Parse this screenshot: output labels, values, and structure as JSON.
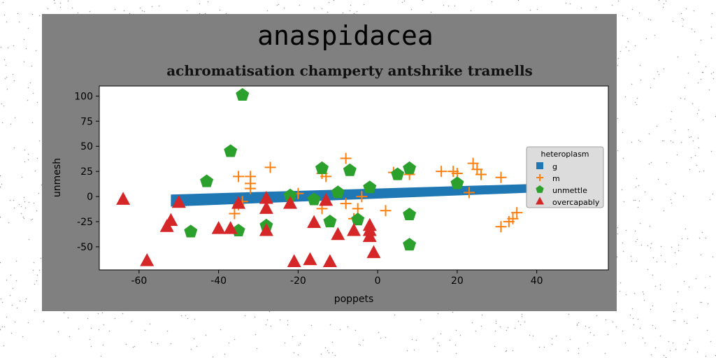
{
  "chart_data": {
    "type": "scatter",
    "title": "anaspidacea",
    "subtitle": "achromatisation champerty antshrike tramells",
    "xlabel": "poppets",
    "ylabel": "unmesh",
    "xlim": [
      -70,
      58
    ],
    "ylim": [
      -73,
      110
    ],
    "xticks": [
      -60,
      -40,
      -20,
      0,
      20,
      40
    ],
    "yticks": [
      -50,
      -25,
      0,
      25,
      50,
      75,
      100
    ],
    "grid": false,
    "legend": {
      "title": "heteroplasm",
      "placement": "right"
    },
    "series": [
      {
        "name": "g",
        "kind": "band",
        "color": "#1f77b4",
        "x_start": -52,
        "x_end": 52,
        "y_start_low": -10,
        "y_start_high": 2,
        "y_end_low": 6,
        "y_end_high": 14
      },
      {
        "name": "m",
        "marker": "plus",
        "color": "#ff7f0e",
        "points": [
          [
            -35,
            20
          ],
          [
            -32,
            20
          ],
          [
            -32,
            13
          ],
          [
            -32,
            8
          ],
          [
            -27,
            29
          ],
          [
            -36,
            -17
          ],
          [
            -35,
            -8
          ],
          [
            -34,
            -5
          ],
          [
            -20,
            3
          ],
          [
            -14,
            23
          ],
          [
            -13,
            20
          ],
          [
            -14,
            -12
          ],
          [
            -8,
            38
          ],
          [
            -8,
            -7
          ],
          [
            -5,
            -12
          ],
          [
            -4,
            0
          ],
          [
            -6,
            -22
          ],
          [
            2,
            -14
          ],
          [
            4,
            24
          ],
          [
            8,
            22
          ],
          [
            16,
            25
          ],
          [
            19,
            25
          ],
          [
            20,
            23
          ],
          [
            24,
            33
          ],
          [
            25,
            27
          ],
          [
            26,
            22
          ],
          [
            23,
            4
          ],
          [
            31,
            19
          ],
          [
            31,
            -30
          ],
          [
            33,
            -25
          ],
          [
            34,
            -22
          ],
          [
            35,
            -16
          ]
        ]
      },
      {
        "name": "unmettle",
        "marker": "pentagon",
        "color": "#2ca02c",
        "points": [
          [
            -34,
            101
          ],
          [
            -37,
            45
          ],
          [
            -43,
            15
          ],
          [
            -47,
            -35
          ],
          [
            -35,
            -34
          ],
          [
            -28,
            -29
          ],
          [
            -22,
            1
          ],
          [
            -16,
            -3
          ],
          [
            -14,
            28
          ],
          [
            -12,
            -25
          ],
          [
            -10,
            4
          ],
          [
            -7,
            26
          ],
          [
            -5,
            -23
          ],
          [
            -2,
            9
          ],
          [
            5,
            22
          ],
          [
            8,
            28
          ],
          [
            8,
            -18
          ],
          [
            8,
            -48
          ],
          [
            20,
            13
          ]
        ]
      },
      {
        "name": "overcapably",
        "marker": "triangle",
        "color": "#d62728",
        "points": [
          [
            -64,
            -3
          ],
          [
            -58,
            -64
          ],
          [
            -53,
            -30
          ],
          [
            -52,
            -24
          ],
          [
            -50,
            -6
          ],
          [
            -40,
            -32
          ],
          [
            -37,
            -32
          ],
          [
            -35,
            -7
          ],
          [
            -28,
            -2
          ],
          [
            -28,
            -12
          ],
          [
            -28,
            -34
          ],
          [
            -22,
            -7
          ],
          [
            -21,
            -65
          ],
          [
            -17,
            -63
          ],
          [
            -16,
            -26
          ],
          [
            -13,
            -4
          ],
          [
            -12,
            -65
          ],
          [
            -10,
            -38
          ],
          [
            -6,
            -34
          ],
          [
            -2,
            -34
          ],
          [
            -2,
            -29
          ],
          [
            -2,
            -40
          ],
          [
            -1,
            -56
          ]
        ]
      }
    ]
  }
}
